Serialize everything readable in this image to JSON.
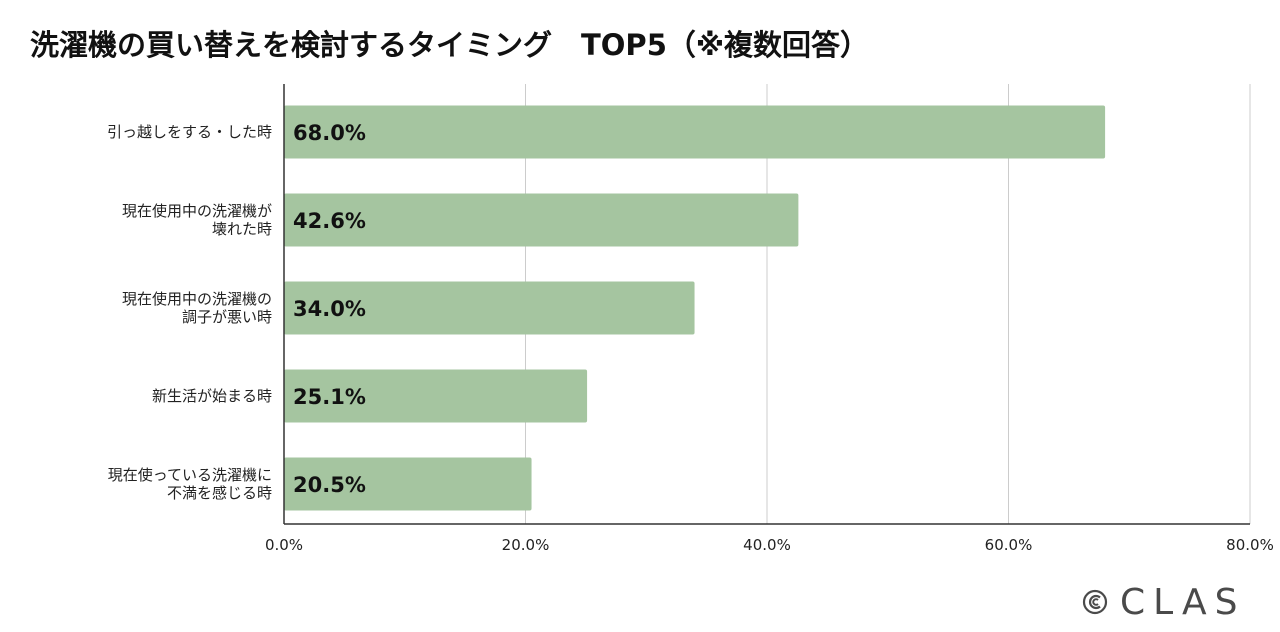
{
  "chart_data": {
    "type": "bar",
    "orientation": "horizontal",
    "title": "洗濯機の買い替えを検討するタイミング　TOP5（※複数回答）",
    "categories": [
      [
        "引っ越しをする・した時"
      ],
      [
        "現在使用中の洗濯機が",
        "壊れた時"
      ],
      [
        "現在使用中の洗濯機の",
        "調子が悪い時"
      ],
      [
        "新生活が始まる時"
      ],
      [
        "現在使っている洗濯機に",
        "不満を感じる時"
      ]
    ],
    "values": [
      68.0,
      42.6,
      34.0,
      25.1,
      20.5
    ],
    "value_labels": [
      "68.0%",
      "42.6%",
      "34.0%",
      "25.1%",
      "20.5%"
    ],
    "xlim": [
      0,
      80
    ],
    "ticks": [
      0,
      20,
      40,
      60,
      80
    ],
    "tick_labels": [
      "0.0%",
      "20.0%",
      "40.0%",
      "60.0%",
      "80.0%"
    ],
    "xlabel": "",
    "ylabel": "",
    "grid": true,
    "bar_color": "#a5c5a0",
    "grid_color": "#cccccc",
    "axis_color": "#333333"
  },
  "brand": {
    "logo_text": "CLAS",
    "color": "#4a4a4a"
  }
}
